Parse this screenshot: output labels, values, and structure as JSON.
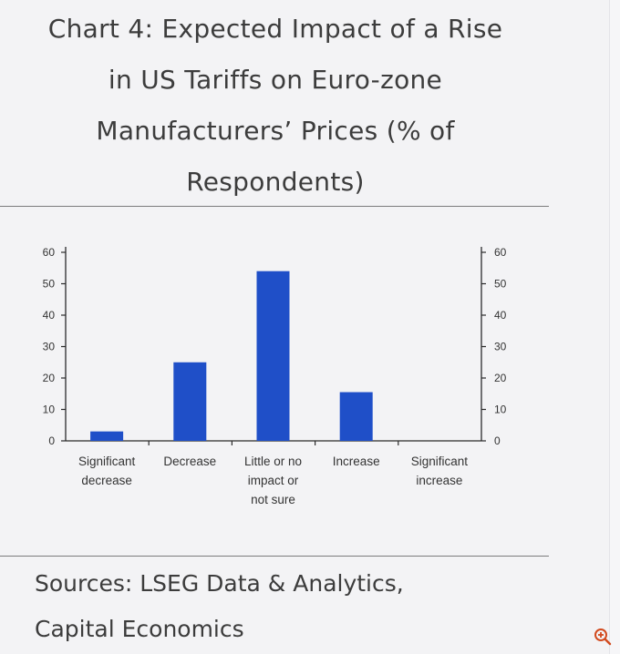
{
  "chart_data": {
    "type": "bar",
    "title_lines": [
      "Chart 4: Expected Impact of a Rise",
      "in US Tariffs on Euro-zone",
      "Manufacturers’ Prices (% of",
      "Respondents)"
    ],
    "categories": [
      [
        "Significant",
        "decrease"
      ],
      [
        "Decrease"
      ],
      [
        "Little or no",
        "impact or",
        "not sure"
      ],
      [
        "Increase"
      ],
      [
        "Significant",
        "increase"
      ]
    ],
    "values": [
      3,
      25,
      54,
      15.5,
      0
    ],
    "ylim": [
      0,
      60
    ],
    "yticks": [
      0,
      10,
      20,
      30,
      40,
      50,
      60
    ],
    "y_axis_sides": "left and right",
    "bar_color": "#1f4fc8",
    "xlabel": "",
    "ylabel": ""
  },
  "sources": {
    "lines": [
      "Sources: LSEG Data & Analytics,",
      "Capital Economics"
    ]
  },
  "icons": {
    "zoom": "zoom-in-icon"
  }
}
